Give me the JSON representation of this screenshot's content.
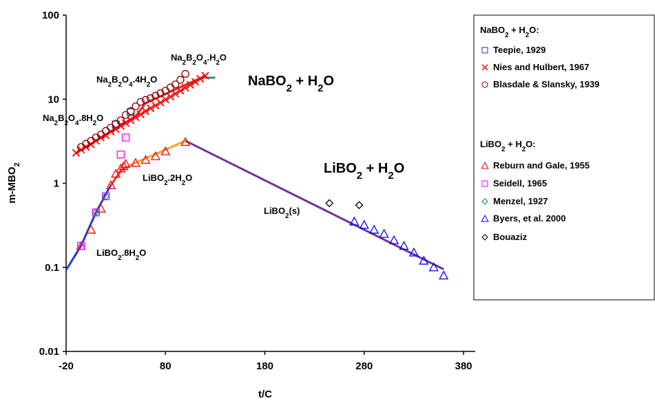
{
  "chart_data": {
    "type": "scatter",
    "ylabel": "m-MBO2",
    "xlabel": "t/C",
    "xlim": [
      -20,
      380
    ],
    "xticks": [
      -20,
      80,
      180,
      280,
      380
    ],
    "ylim": [
      0.01,
      100
    ],
    "yticks": [
      100,
      10,
      1,
      0.1,
      0.01
    ],
    "log_y": true,
    "grid": false,
    "legend": "right",
    "annotations": [
      "Na2B2O4.H2O",
      "Na2B2O4.4H2O",
      "Na2B2O4.8H2O",
      "NaBO2 + H2O",
      "LiBO2 + H2O",
      "LiBO2.2H2O",
      "LiBO2(s)",
      "LiBO2.8H2O"
    ],
    "lines": [
      {
        "color": "#ff2020",
        "x": [
          -10,
          50,
          60,
          120
        ],
        "values": [
          2.3,
          6.3,
          9,
          19
        ]
      },
      {
        "color": "#2e8b8b",
        "x": [
          118,
          130
        ],
        "values": [
          18,
          18
        ]
      },
      {
        "color": "#1a3fd0",
        "x": [
          -20,
          -5,
          10,
          25
        ],
        "values": [
          0.093,
          0.18,
          0.45,
          0.95
        ]
      },
      {
        "color": "#ff2a2a",
        "x": [
          25,
          35,
          40
        ],
        "values": [
          0.95,
          1.4,
          1.55
        ]
      },
      {
        "color": "#ffa020",
        "x": [
          40,
          100
        ],
        "values": [
          1.55,
          3.2
        ]
      },
      {
        "color": "#7030a0",
        "x": [
          100,
          360
        ],
        "values": [
          3.2,
          0.095
        ]
      }
    ],
    "series_groups": [
      {
        "title": "NaBO2 + H2O:",
        "series": [
          {
            "name": "Teepie, 1929",
            "color": "#333399",
            "marker": "square",
            "x": [
              30,
              45
            ],
            "values": [
              5,
              7
            ]
          },
          {
            "name": "Nies and Hulbert, 1967",
            "color": "#ff0000",
            "marker": "x",
            "x": [
              -10,
              -5,
              0,
              5,
              10,
              15,
              20,
              25,
              30,
              35,
              40,
              45,
              50,
              55,
              60,
              65,
              70,
              75,
              80,
              85,
              90,
              95,
              100,
              105,
              110,
              115,
              120
            ],
            "values": [
              2.3,
              2.5,
              2.7,
              2.9,
              3.2,
              3.5,
              3.7,
              4.1,
              4.4,
              4.8,
              5.2,
              5.6,
              6.1,
              6.6,
              7.2,
              7.8,
              8.4,
              9.1,
              9.9,
              10.7,
              11.6,
              12.6,
              13.7,
              14.8,
              16.1,
              17.5,
              19
            ]
          },
          {
            "name": "Blasdale & Slansky, 1939",
            "color": "#8b0000",
            "marker": "circle",
            "x": [
              -5,
              0,
              5,
              10,
              15,
              20,
              25,
              30,
              35,
              40,
              45,
              50,
              55,
              60,
              65,
              70,
              75,
              80,
              85,
              90,
              95,
              100
            ],
            "values": [
              2.7,
              2.95,
              3.2,
              3.5,
              3.8,
              4.2,
              4.6,
              5.1,
              5.6,
              6.5,
              7.2,
              8.2,
              9.3,
              9.8,
              10.3,
              11,
              11.8,
              12.6,
              13.8,
              15,
              17,
              20
            ]
          }
        ]
      },
      {
        "title": "LiBO2 + H2O:",
        "series": [
          {
            "name": "Reburn and Gale, 1955",
            "color": "#ff0000",
            "marker": "triangle",
            "x": [
              -5,
              5,
              15,
              25,
              30,
              35,
              38,
              40,
              50,
              60,
              70,
              80,
              100
            ],
            "values": [
              0.18,
              0.28,
              0.5,
              0.95,
              1.3,
              1.5,
              1.6,
              1.7,
              1.75,
              1.9,
              2.1,
              2.4,
              3.1
            ]
          },
          {
            "name": "Seidell, 1965",
            "color": "#ff00ff",
            "marker": "square",
            "x": [
              -5,
              10,
              20,
              35,
              40
            ],
            "values": [
              0.18,
              0.45,
              0.7,
              2.2,
              3.5
            ]
          },
          {
            "name": "Menzel, 1927",
            "color": "#008b8b",
            "marker": "diamond",
            "x": [
              10,
              20
            ],
            "values": [
              0.45,
              0.7
            ]
          },
          {
            "name": "Byers, et al. 2000",
            "color": "#0000ff",
            "marker": "triangle",
            "x": [
              270,
              280,
              290,
              300,
              310,
              320,
              330,
              340,
              350,
              360
            ],
            "values": [
              0.35,
              0.32,
              0.28,
              0.25,
              0.21,
              0.18,
              0.15,
              0.12,
              0.1,
              0.08
            ]
          },
          {
            "name": "Bouaziz",
            "color": "#000000",
            "marker": "diamond",
            "x": [
              245,
              275
            ],
            "values": [
              0.58,
              0.55
            ]
          }
        ]
      }
    ]
  }
}
